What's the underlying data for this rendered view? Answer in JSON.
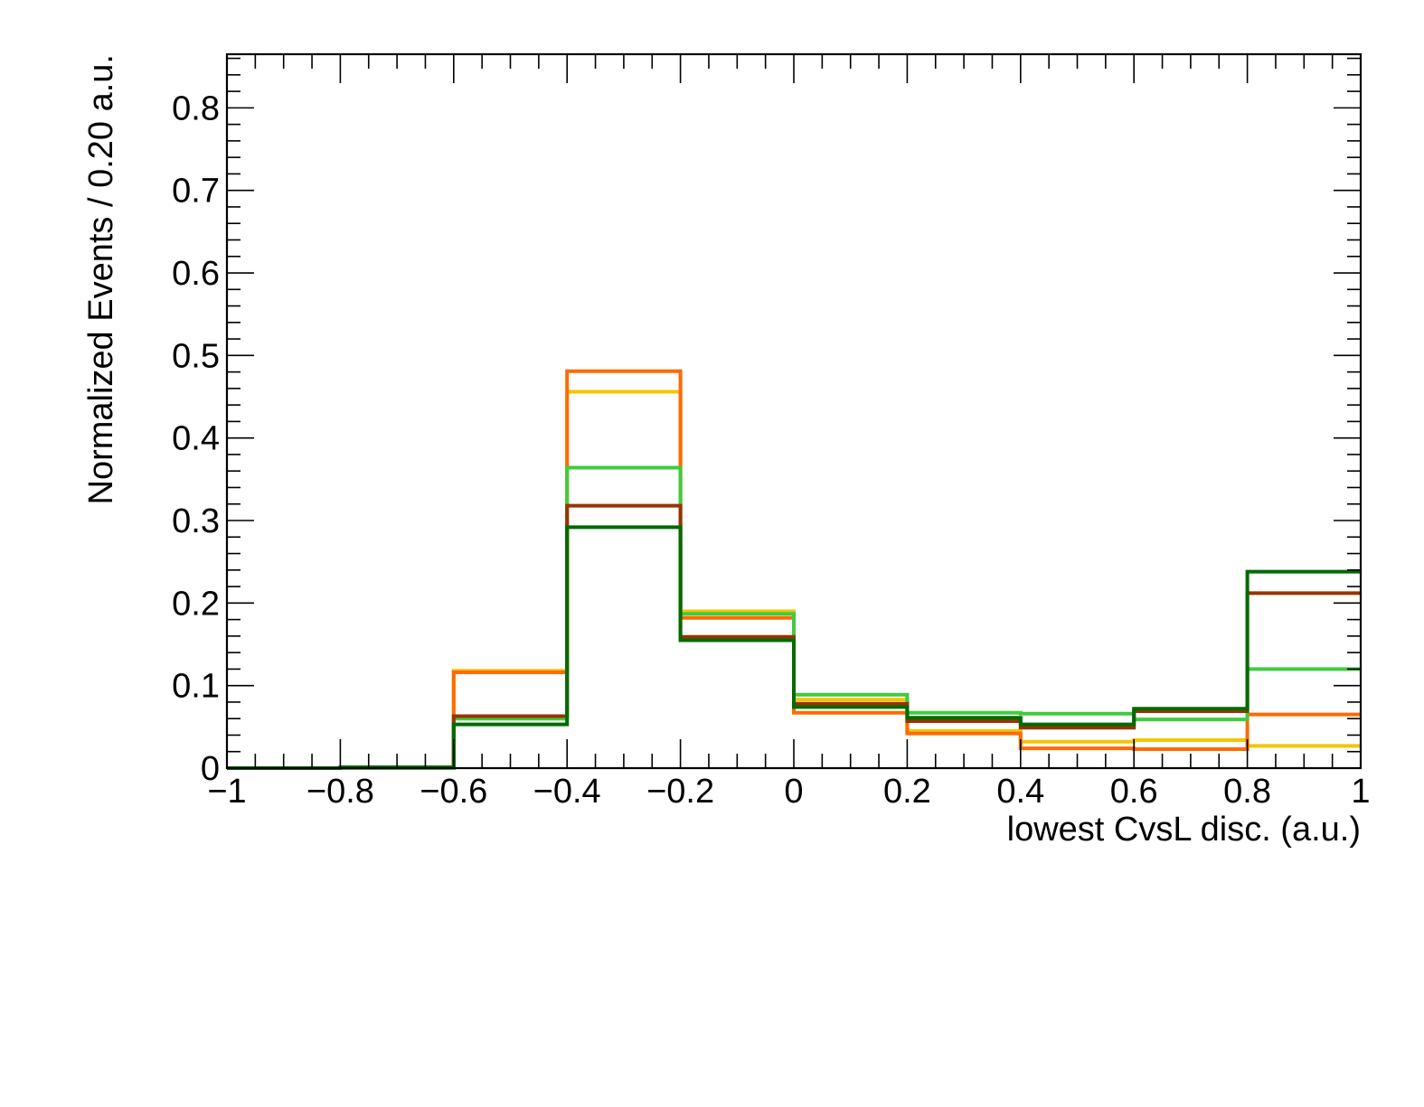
{
  "chart_data": {
    "type": "line",
    "title": "",
    "xlabel": "lowest CvsL disc. (a.u.)",
    "ylabel": "Normalized Events / 0.20 a.u.",
    "xlim": [
      -1,
      1
    ],
    "ylim": [
      0,
      0.865
    ],
    "grid": false,
    "legend": "none",
    "x_ticks": [
      -1,
      -0.8,
      -0.6,
      -0.4,
      -0.2,
      0,
      0.2,
      0.4,
      0.6,
      0.8,
      1
    ],
    "x_tick_labels": [
      "−1",
      "−0.8",
      "−0.6",
      "−0.4",
      "−0.2",
      "0",
      "0.2",
      "0.4",
      "0.6",
      "0.8",
      "1"
    ],
    "y_ticks": [
      0,
      0.1,
      0.2,
      0.3,
      0.4,
      0.5,
      0.6,
      0.7,
      0.8
    ],
    "y_tick_labels": [
      "0",
      "0.1",
      "0.2",
      "0.3",
      "0.4",
      "0.5",
      "0.6",
      "0.7",
      "0.8"
    ],
    "bin_edges": [
      -1,
      -0.8,
      -0.6,
      -0.4,
      -0.2,
      0,
      0.2,
      0.4,
      0.6,
      0.8,
      1
    ],
    "series": [
      {
        "color": "#f5c400",
        "values": [
          0.0,
          0.0,
          0.118,
          0.456,
          0.19,
          0.083,
          0.045,
          0.032,
          0.034,
          0.027
        ]
      },
      {
        "color": "#ff6a00",
        "values": [
          0.0,
          0.0,
          0.116,
          0.481,
          0.182,
          0.067,
          0.042,
          0.024,
          0.023,
          0.065
        ]
      },
      {
        "color": "#3ecc3e",
        "values": [
          0.0,
          0.0,
          0.06,
          0.364,
          0.187,
          0.089,
          0.067,
          0.066,
          0.059,
          0.12
        ]
      },
      {
        "color": "#993300",
        "values": [
          0.0,
          0.001,
          0.063,
          0.318,
          0.159,
          0.078,
          0.057,
          0.049,
          0.069,
          0.212
        ]
      },
      {
        "color": "#006b00",
        "values": [
          0.0,
          0.001,
          0.053,
          0.292,
          0.155,
          0.074,
          0.061,
          0.053,
          0.072,
          0.238
        ]
      }
    ]
  }
}
